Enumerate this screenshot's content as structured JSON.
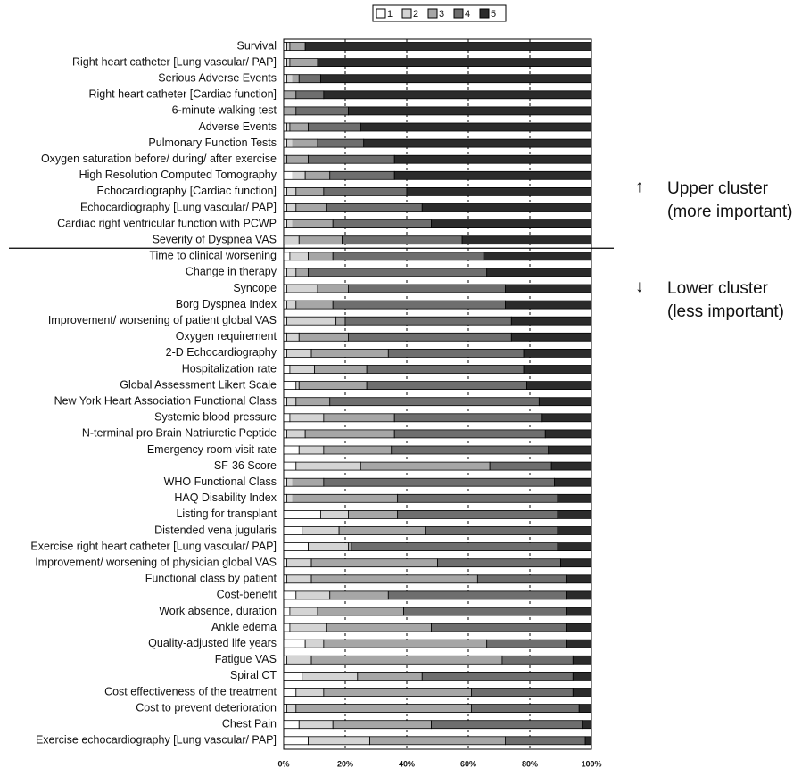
{
  "chart_data": {
    "type": "stacked_bar_horizontal",
    "categories": [
      "Survival",
      "Right heart catheter [Lung vascular/ PAP]",
      "Serious Adverse Events",
      "Right heart catheter [Cardiac function]",
      "6-minute walking test",
      "Adverse Events",
      "Pulmonary Function Tests",
      "Oxygen saturation before/ during/ after exercise",
      "High Resolution Computed Tomography",
      "Echocardiography [Cardiac function]",
      "Echocardiography [Lung vascular/ PAP]",
      "Cardiac right ventricular function with PCWP",
      "Severity of Dyspnea VAS",
      "Time to clinical worsening",
      "Change in therapy",
      "Syncope",
      "Borg Dyspnea Index",
      "Improvement/ worsening of patient global VAS",
      "Oxygen requirement",
      "2-D Echocardiography",
      "Hospitalization rate",
      "Global Assessment Likert Scale",
      "New York Heart Association Functional Class",
      "Systemic blood pressure",
      "N-terminal pro Brain Natriuretic Peptide",
      "Emergency room visit rate",
      "SF-36 Score",
      "WHO Functional Class",
      "HAQ Disability Index",
      "Listing for transplant",
      "Distended vena jugularis",
      "Exercise right heart catheter [Lung vascular/ PAP]",
      "Improvement/ worsening of physician global VAS",
      "Functional class by patient",
      "Cost-benefit",
      "Work absence, duration",
      "Ankle edema",
      "Quality-adjusted life years",
      "Fatigue VAS",
      "Spiral CT",
      "Cost effectiveness of the treatment",
      "Cost to prevent deterioration",
      "Chest Pain",
      "Exercise echocardiography [Lung vascular/ PAP]"
    ],
    "series": [
      {
        "name": "1",
        "color": "#ffffff",
        "values": [
          1,
          1,
          1,
          0,
          0,
          1,
          1,
          0,
          3,
          1,
          1,
          1,
          0,
          2,
          1,
          1,
          1,
          1,
          1,
          1,
          2,
          4,
          1,
          2,
          1,
          5,
          4,
          1,
          1,
          12,
          6,
          8,
          1,
          1,
          4,
          2,
          2,
          7,
          1,
          6,
          4,
          1,
          5,
          8
        ]
      },
      {
        "name": "2",
        "color": "#d4d4d4",
        "values": [
          1,
          1,
          2,
          0,
          0,
          1,
          2,
          1,
          4,
          3,
          3,
          2,
          5,
          6,
          3,
          10,
          3,
          16,
          4,
          8,
          8,
          1,
          3,
          11,
          6,
          8,
          21,
          2,
          2,
          9,
          12,
          13,
          8,
          8,
          11,
          9,
          12,
          6,
          8,
          18,
          9,
          3,
          11,
          20
        ]
      },
      {
        "name": "3",
        "color": "#a6a6a6",
        "values": [
          5,
          9,
          2,
          4,
          4,
          6,
          8,
          7,
          8,
          9,
          10,
          13,
          14,
          8,
          4,
          10,
          12,
          3,
          16,
          25,
          17,
          22,
          11,
          23,
          29,
          22,
          42,
          10,
          34,
          16,
          28,
          1,
          41,
          54,
          19,
          28,
          34,
          53,
          62,
          21,
          48,
          57,
          32,
          44
        ]
      },
      {
        "name": "4",
        "color": "#6e6e6e",
        "values": [
          0,
          0,
          7,
          9,
          17,
          17,
          15,
          28,
          21,
          27,
          31,
          32,
          39,
          49,
          58,
          51,
          56,
          54,
          53,
          44,
          51,
          52,
          68,
          48,
          49,
          51,
          20,
          75,
          52,
          52,
          43,
          67,
          40,
          29,
          58,
          53,
          44,
          26,
          23,
          49,
          33,
          35,
          49,
          26
        ]
      },
      {
        "name": "5",
        "color": "#2b2b2b",
        "values": [
          93,
          89,
          88,
          87,
          79,
          75,
          74,
          64,
          64,
          60,
          55,
          52,
          42,
          35,
          34,
          28,
          28,
          26,
          26,
          22,
          22,
          21,
          17,
          16,
          15,
          14,
          13,
          12,
          11,
          11,
          11,
          11,
          10,
          8,
          8,
          8,
          8,
          8,
          6,
          6,
          6,
          4,
          3,
          2
        ]
      }
    ],
    "xlim": [
      0,
      100
    ],
    "xticks": [
      {
        "value": 0,
        "label": "0%"
      },
      {
        "value": 20,
        "label": "20%"
      },
      {
        "value": 40,
        "label": "40%"
      },
      {
        "value": 60,
        "label": "60%"
      },
      {
        "value": 80,
        "label": "80%"
      },
      {
        "value": 100,
        "label": "100%"
      }
    ],
    "grid": true,
    "legend": "top",
    "annotations": [
      {
        "lines": [
          "Upper cluster",
          "(more important)"
        ]
      },
      {
        "lines": [
          "Lower cluster",
          "(less important)"
        ]
      }
    ]
  }
}
